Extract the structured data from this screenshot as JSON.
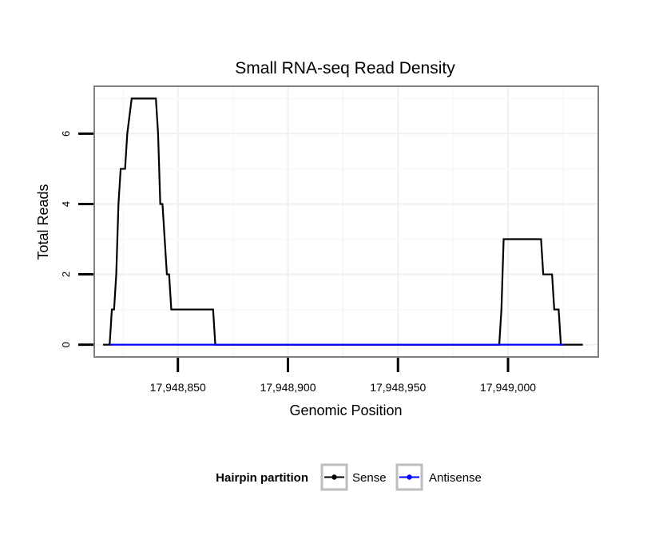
{
  "chart_data": {
    "type": "line",
    "title": "Small RNA-seq Read Density",
    "xlabel": "Genomic Position",
    "ylabel": "Total Reads",
    "xlim": [
      17948812,
      17949041
    ],
    "ylim": [
      -0.35,
      7.35
    ],
    "x_ticks": [
      17948850,
      17948900,
      17948950,
      17949000
    ],
    "x_tick_labels": [
      "17,948,850",
      "17,948,900",
      "17,948,950",
      "17,949,000"
    ],
    "y_ticks": [
      0,
      2,
      4,
      6
    ],
    "y_tick_labels": [
      "0",
      "2",
      "4",
      "6"
    ],
    "grid": true,
    "legend": {
      "title": "Hairpin partition",
      "position": "bottom",
      "entries": [
        {
          "label": "Sense",
          "color": "#000000"
        },
        {
          "label": "Antisense",
          "color": "#0000ff"
        }
      ]
    },
    "series": [
      {
        "name": "Sense",
        "color": "#000000",
        "x": [
          17948816,
          17948819,
          17948820,
          17948821,
          17948822,
          17948823,
          17948824,
          17948826,
          17948827,
          17948829,
          17948840,
          17948841,
          17948842,
          17948843,
          17948844,
          17948845,
          17948846,
          17948847,
          17948866,
          17948867,
          17948996,
          17948997,
          17948998,
          17949015,
          17949016,
          17949020,
          17949021,
          17949023,
          17949024,
          17949025,
          17949034
        ],
        "values": [
          0,
          0,
          1,
          1,
          2,
          4,
          5,
          5,
          6,
          7,
          7,
          6,
          4,
          4,
          3,
          2,
          2,
          1,
          1,
          0,
          0,
          1,
          3,
          3,
          2,
          2,
          1,
          1,
          0,
          0,
          0
        ]
      },
      {
        "name": "Antisense",
        "color": "#0000ff",
        "x": [
          17948819,
          17948866,
          17948996,
          17949025
        ],
        "values": [
          0,
          0,
          0,
          0
        ]
      }
    ]
  }
}
